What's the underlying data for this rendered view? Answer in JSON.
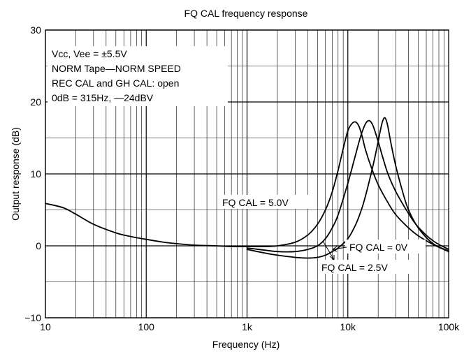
{
  "chart_data": {
    "type": "line",
    "title": "FQ CAL frequency response",
    "xlabel": "Frequency (Hz)",
    "ylabel": "Output response (dB)",
    "x_scale": "log",
    "xlim": [
      10,
      100000
    ],
    "ylim": [
      -10,
      30
    ],
    "x_ticks": [
      10,
      100,
      1000,
      10000,
      100000
    ],
    "x_tick_labels": [
      "10",
      "100",
      "1k",
      "10k",
      "100k"
    ],
    "y_ticks": [
      -10,
      0,
      10,
      20,
      30
    ],
    "y_tick_labels": [
      "−10",
      "0",
      "10",
      "20",
      "30"
    ],
    "grid": true,
    "conditions": [
      "Vcc, Vee = ±5.5V",
      "NORM Tape—NORM SPEED",
      "REC CAL and GH CAL:  open",
      "0dB = 315Hz, —24dBV"
    ],
    "series": [
      {
        "name": "FQ CAL = 5.0V",
        "x": [
          10,
          15,
          20,
          30,
          50,
          70,
          100,
          150,
          200,
          300,
          500,
          700,
          1000,
          1500,
          2000,
          3000,
          4000,
          5000,
          6000,
          7000,
          8000,
          9000,
          10000,
          11000,
          12000,
          13000,
          14000,
          15000,
          17000,
          20000,
          25000,
          30000,
          40000,
          50000,
          70000,
          100000
        ],
        "y": [
          5.9,
          5.3,
          4.4,
          3.0,
          1.8,
          1.3,
          0.9,
          0.5,
          0.3,
          0.1,
          0.0,
          -0.1,
          -0.1,
          -0.1,
          0.0,
          0.5,
          1.5,
          3.0,
          5.0,
          7.5,
          10.5,
          13.5,
          16.0,
          17.0,
          17.2,
          16.5,
          15.0,
          13.3,
          11.0,
          8.5,
          6.0,
          4.3,
          2.5,
          1.4,
          0.2,
          -0.8
        ]
      },
      {
        "name": "FQ CAL = 2.5V",
        "x": [
          1000,
          1500,
          2000,
          3000,
          4000,
          5000,
          6000,
          7000,
          8000,
          10000,
          12000,
          13000,
          14000,
          15000,
          16000,
          17000,
          18000,
          20000,
          22000,
          25000,
          30000,
          40000,
          50000,
          70000,
          100000
        ],
        "y": [
          -0.3,
          -0.6,
          -0.8,
          -0.8,
          -0.5,
          0.0,
          1.0,
          2.5,
          4.3,
          8.7,
          12.8,
          14.6,
          16.0,
          17.0,
          17.4,
          17.2,
          16.5,
          14.5,
          12.5,
          10.0,
          7.5,
          4.5,
          2.6,
          0.7,
          -0.5
        ]
      },
      {
        "name": "FQ CAL = 0V",
        "x": [
          1000,
          1500,
          2000,
          3000,
          4000,
          5000,
          6000,
          7000,
          8000,
          10000,
          12000,
          14000,
          16000,
          18000,
          20000,
          21000,
          22000,
          23000,
          24000,
          25000,
          27000,
          30000,
          35000,
          40000,
          50000,
          70000,
          100000
        ],
        "y": [
          -0.5,
          -1.0,
          -1.3,
          -1.6,
          -1.7,
          -1.6,
          -1.3,
          -0.8,
          -0.3,
          1.0,
          3.0,
          5.5,
          8.5,
          11.5,
          14.5,
          16.0,
          17.2,
          17.8,
          17.5,
          16.5,
          14.0,
          11.0,
          7.5,
          5.0,
          2.5,
          0.3,
          -0.7
        ]
      }
    ],
    "annotations": [
      {
        "text": "FQ CAL = 5.0V"
      },
      {
        "text": "FQ CAL = 0V"
      },
      {
        "text": "FQ CAL = 2.5V"
      }
    ]
  }
}
